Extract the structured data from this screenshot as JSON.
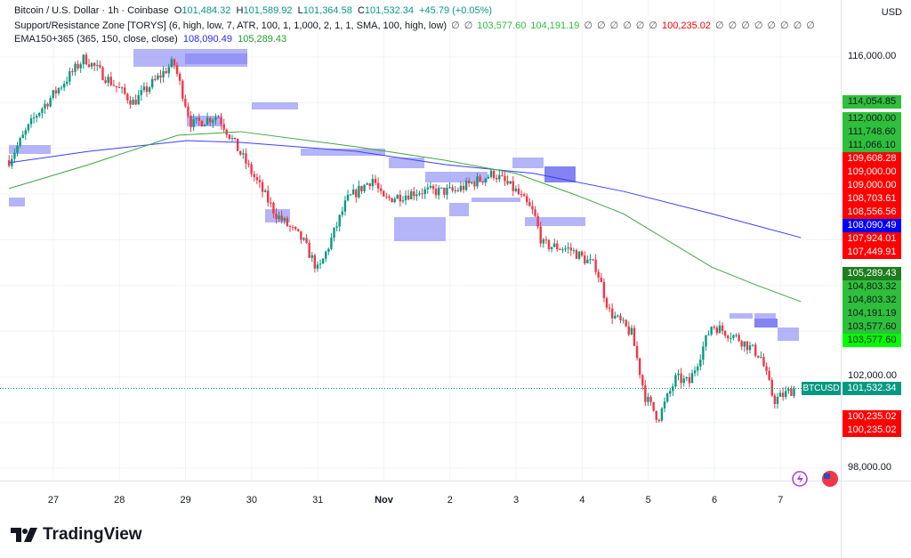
{
  "header": {
    "symbol_line": "Bitcoin / U.S. Dollar · 1h · Coinbase",
    "open_label": "O",
    "open": "101,484.32",
    "high_label": "H",
    "high": "101,589.92",
    "low_label": "L",
    "low": "101,364.58",
    "close_label": "C",
    "close": "101,532.34",
    "change": "+45.79 (+0.05%)"
  },
  "indicators": {
    "sr_zone": {
      "label": "Support/Resistance Zone [TORYS] (6, high, low, 7, ATR, 100, 1, 1,000, 2, 1, 1, SMA, 100, high, low)",
      "values": [
        "∅",
        "∅",
        "103,577.60",
        "104,191.19",
        "∅",
        "∅",
        "∅",
        "∅",
        "∅",
        "∅",
        "100,235.02",
        "∅",
        "∅",
        "∅",
        "∅",
        "∅",
        "∅",
        "∅",
        "∅"
      ],
      "value_colors": [
        "null",
        "null",
        "green",
        "green",
        "null",
        "null",
        "null",
        "null",
        "null",
        "null",
        "red",
        "null",
        "null",
        "null",
        "null",
        "null",
        "null",
        "null",
        "null"
      ]
    },
    "ema": {
      "label": "EMA150+365 (365, 150, close, close)",
      "ema365": "108,090.49",
      "ema150": "105,289.43"
    }
  },
  "currency": "USD",
  "price_axis": [
    "116,000.00",
    "102,000.00",
    "98,000.00"
  ],
  "price_labels": [
    {
      "text": "114,054.85",
      "bg": "#2ebf3b",
      "fg": "#131722"
    },
    {
      "text": "112,000.00",
      "bg": "#2ebf3b",
      "fg": "#131722"
    },
    {
      "text": "111,748.60",
      "bg": "#2ebf3b",
      "fg": "#131722"
    },
    {
      "text": "111,066.10",
      "bg": "#2ebf3b",
      "fg": "#131722"
    },
    {
      "text": "109,608.28",
      "bg": "#ff0000",
      "fg": "#ffffff"
    },
    {
      "text": "109,000.00",
      "bg": "#ff0000",
      "fg": "#ffffff"
    },
    {
      "text": "109,000.00",
      "bg": "#ff0000",
      "fg": "#ffffff"
    },
    {
      "text": "108,703.61",
      "bg": "#ff0000",
      "fg": "#ffffff"
    },
    {
      "text": "108,556.56",
      "bg": "#ff0000",
      "fg": "#ffffff"
    },
    {
      "text": "108,090.49",
      "bg": "#0000ff",
      "fg": "#ffffff"
    },
    {
      "text": "107,924.01",
      "bg": "#ff0000",
      "fg": "#ffffff"
    },
    {
      "text": "107,449.91",
      "bg": "#ff0000",
      "fg": "#ffffff"
    },
    {
      "text": "105,289.43",
      "bg": "#1e7d1e",
      "fg": "#ffffff"
    },
    {
      "text": "104,803.32",
      "bg": "#2ebf3b",
      "fg": "#131722"
    },
    {
      "text": "104,803.32",
      "bg": "#2ebf3b",
      "fg": "#131722"
    },
    {
      "text": "104,191.19",
      "bg": "#2ebf3b",
      "fg": "#131722"
    },
    {
      "text": "103,577.60",
      "bg": "#2ebf3b",
      "fg": "#131722"
    },
    {
      "text": "103,577.60",
      "bg": "#00ff00",
      "fg": "#131722"
    },
    {
      "text": "101,532.34",
      "bg": "#089981",
      "fg": "#ffffff"
    },
    {
      "text": "100,235.02",
      "bg": "#ff0000",
      "fg": "#ffffff"
    },
    {
      "text": "100,235.02",
      "bg": "#ff0000",
      "fg": "#ffffff"
    }
  ],
  "ticker_tag": "BTCUSD",
  "time_axis": [
    "27",
    "28",
    "29",
    "30",
    "31",
    "Nov",
    "2",
    "3",
    "4",
    "5",
    "6",
    "7"
  ],
  "brand": "TradingView",
  "colors": {
    "up": "#089981",
    "down": "#f23645",
    "ema365": "#3d3dff",
    "ema150": "#3fa63f",
    "zone": "#9b9bf5"
  },
  "chart_data": {
    "type": "candlestick",
    "interval": "1h",
    "ylim": [
      97000,
      117000
    ],
    "close_path_days_from_oct27": [
      [
        -0.67,
        111480
      ],
      [
        -0.27,
        113430
      ],
      [
        0.47,
        115960
      ],
      [
        1.21,
        114010
      ],
      [
        1.82,
        115770
      ],
      [
        2.09,
        113040
      ],
      [
        2.49,
        113430
      ],
      [
        2.89,
        111480
      ],
      [
        3.36,
        109140
      ],
      [
        3.77,
        107980
      ],
      [
        4.01,
        106610
      ],
      [
        4.44,
        109730
      ],
      [
        4.84,
        110700
      ],
      [
        4.98,
        109730
      ],
      [
        5.52,
        110120
      ],
      [
        6.06,
        110120
      ],
      [
        6.66,
        110900
      ],
      [
        7.0,
        110120
      ],
      [
        7.27,
        109140
      ],
      [
        7.4,
        107780
      ],
      [
        7.81,
        107590
      ],
      [
        8.21,
        106810
      ],
      [
        8.41,
        104860
      ],
      [
        8.75,
        103880
      ],
      [
        8.95,
        101160
      ],
      [
        9.15,
        100180
      ],
      [
        9.42,
        101940
      ],
      [
        9.62,
        101740
      ],
      [
        9.96,
        104270
      ],
      [
        10.36,
        103690
      ],
      [
        10.7,
        102910
      ],
      [
        10.9,
        100960
      ],
      [
        11.24,
        101532
      ]
    ],
    "ema365_path": [
      [
        -0.67,
        111370
      ],
      [
        0.54,
        111870
      ],
      [
        2.02,
        112340
      ],
      [
        2.83,
        112260
      ],
      [
        4.58,
        111870
      ],
      [
        5.92,
        111290
      ],
      [
        7.27,
        110900
      ],
      [
        8.62,
        110120
      ],
      [
        9.96,
        109140
      ],
      [
        11.31,
        108090
      ]
    ],
    "ema150_path": [
      [
        -0.67,
        110240
      ],
      [
        0.54,
        111290
      ],
      [
        1.88,
        112570
      ],
      [
        2.83,
        112730
      ],
      [
        4.58,
        112070
      ],
      [
        5.92,
        111480
      ],
      [
        7.0,
        110900
      ],
      [
        7.94,
        109920
      ],
      [
        8.62,
        109140
      ],
      [
        9.29,
        107970
      ],
      [
        9.96,
        106800
      ],
      [
        10.63,
        106020
      ],
      [
        11.31,
        105289
      ]
    ]
  }
}
